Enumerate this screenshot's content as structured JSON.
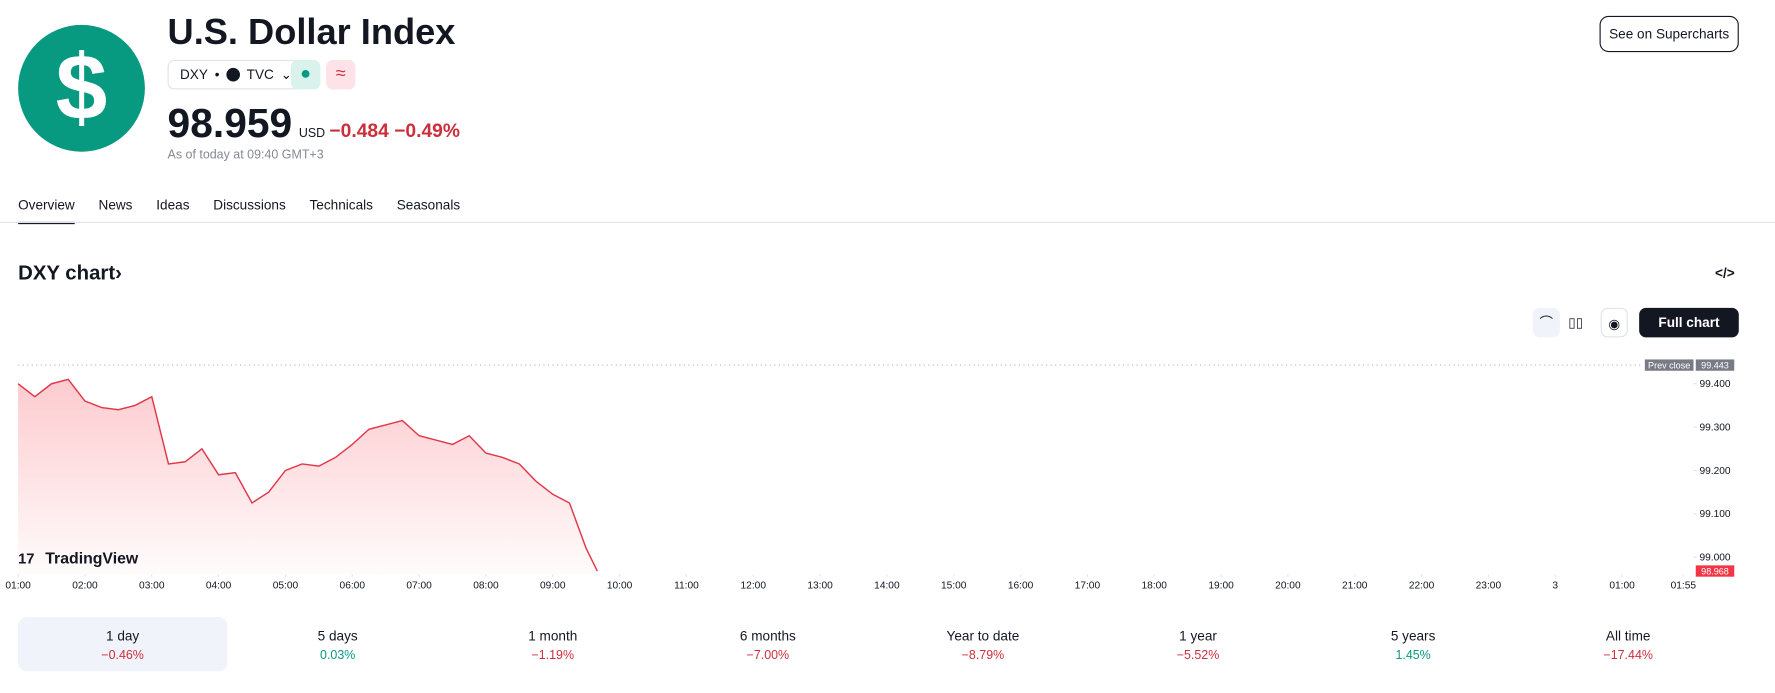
{
  "header": {
    "title": "U.S. Dollar Index",
    "symbol": "DXY",
    "exchange": "TVC",
    "price": "98.959",
    "currency": "USD",
    "change": "−0.484",
    "change_percent": "−0.49%",
    "as_of": "As of today at 09:40 GMT+3",
    "button": "See on Supercharts"
  },
  "tabs": [
    "Overview",
    "News",
    "Ideas",
    "Discussions",
    "Technicals",
    "Seasonals"
  ],
  "section": {
    "title": "DXY chart",
    "button": "Full chart"
  },
  "chart_data": {
    "type": "line",
    "watermark": "TradingView",
    "color": "#e03a4a",
    "x": [
      1,
      1.25,
      1.5,
      1.75,
      2,
      2.25,
      2.5,
      2.75,
      3,
      3.25,
      3.5,
      3.75,
      4,
      4.25,
      4.5,
      4.75,
      5,
      5.25,
      5.5,
      5.75,
      6,
      6.25,
      6.5,
      6.75,
      7,
      7.25,
      7.5,
      7.75,
      8,
      8.25,
      8.5,
      8.75,
      9,
      9.25,
      9.5,
      9.667
    ],
    "series": [
      {
        "name": "DXY",
        "values": [
          99.4,
          99.37,
          99.4,
          99.41,
          99.36,
          99.345,
          99.34,
          99.35,
          99.37,
          99.215,
          99.22,
          99.25,
          99.19,
          99.195,
          99.125,
          99.15,
          99.2,
          99.215,
          99.21,
          99.23,
          99.26,
          99.295,
          99.305,
          99.315,
          99.28,
          99.27,
          99.26,
          99.28,
          99.24,
          99.23,
          99.215,
          99.175,
          99.145,
          99.125,
          99.02,
          98.968
        ],
        "value_labels": {
          "35": "98.968"
        }
      }
    ],
    "xlim": [
      1,
      25.9167
    ],
    "xticks": [
      {
        "value": 1,
        "label": "01:00"
      },
      {
        "value": 2,
        "label": "02:00"
      },
      {
        "value": 3,
        "label": "03:00"
      },
      {
        "value": 4,
        "label": "04:00"
      },
      {
        "value": 5,
        "label": "05:00"
      },
      {
        "value": 6,
        "label": "06:00"
      },
      {
        "value": 7,
        "label": "07:00"
      },
      {
        "value": 8,
        "label": "08:00"
      },
      {
        "value": 9,
        "label": "09:00"
      },
      {
        "value": 10,
        "label": "10:00"
      },
      {
        "value": 11,
        "label": "11:00"
      },
      {
        "value": 12,
        "label": "12:00"
      },
      {
        "value": 13,
        "label": "13:00"
      },
      {
        "value": 14,
        "label": "14:00"
      },
      {
        "value": 15,
        "label": "15:00"
      },
      {
        "value": 16,
        "label": "16:00"
      },
      {
        "value": 17,
        "label": "17:00"
      },
      {
        "value": 18,
        "label": "18:00"
      },
      {
        "value": 19,
        "label": "19:00"
      },
      {
        "value": 20,
        "label": "20:00"
      },
      {
        "value": 21,
        "label": "21:00"
      },
      {
        "value": 22,
        "label": "22:00"
      },
      {
        "value": 23,
        "label": "23:00"
      },
      {
        "value": 24,
        "label": "3"
      },
      {
        "value": 25,
        "label": "01:00"
      },
      {
        "value": 25.9167,
        "label": "01:55"
      }
    ],
    "ylim": [
      98.96,
      99.46
    ],
    "yticks": [
      {
        "value": 99.0,
        "label": "99.000"
      },
      {
        "value": 99.1,
        "label": "99.100"
      },
      {
        "value": 99.2,
        "label": "99.200"
      },
      {
        "value": 99.3,
        "label": "99.300"
      },
      {
        "value": 99.4,
        "label": "99.400"
      }
    ],
    "prev_close": {
      "label": "Prev close",
      "value": 99.443,
      "value_label": "99.443"
    }
  },
  "periods": [
    {
      "label": "1 day",
      "change": "−0.46%",
      "color": "#cc2f3c"
    },
    {
      "label": "5 days",
      "change": "0.03%",
      "color": "#089981"
    },
    {
      "label": "1 month",
      "change": "−1.19%",
      "color": "#cc2f3c"
    },
    {
      "label": "6 months",
      "change": "−7.00%",
      "color": "#cc2f3c"
    },
    {
      "label": "Year to date",
      "change": "−8.79%",
      "color": "#cc2f3c"
    },
    {
      "label": "1 year",
      "change": "−5.52%",
      "color": "#cc2f3c"
    },
    {
      "label": "5 years",
      "change": "1.45%",
      "color": "#089981"
    },
    {
      "label": "All time",
      "change": "−17.44%",
      "color": "#cc2f3c"
    }
  ]
}
